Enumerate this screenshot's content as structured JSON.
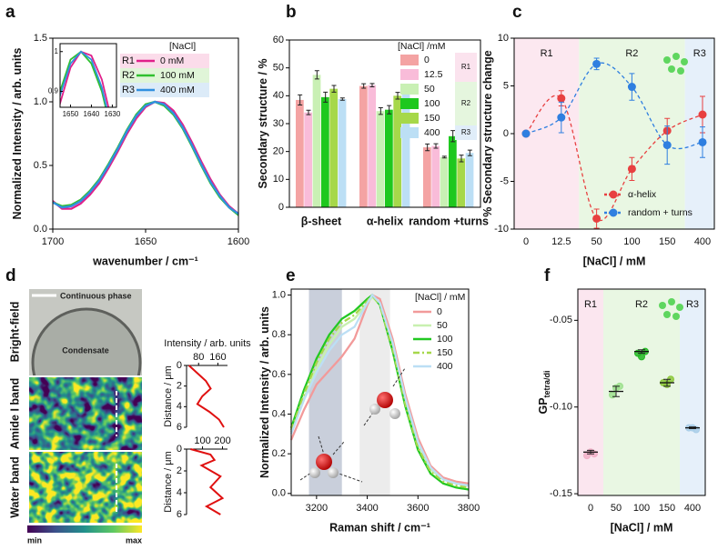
{
  "chart_data": [
    {
      "panel": "a",
      "type": "line",
      "ylabel": "Normalized Intensity / arb. units",
      "xlabel": "wavenumber / cm⁻¹",
      "x": [
        1700,
        1695,
        1690,
        1685,
        1680,
        1675,
        1670,
        1665,
        1660,
        1655,
        1650,
        1645,
        1640,
        1635,
        1630,
        1625,
        1620,
        1615,
        1610,
        1605,
        1600
      ],
      "series": [
        {
          "name": "0 mM",
          "color": "#e0208a",
          "values": [
            0.22,
            0.16,
            0.16,
            0.2,
            0.27,
            0.36,
            0.48,
            0.61,
            0.75,
            0.87,
            0.96,
            1.0,
            0.99,
            0.93,
            0.82,
            0.68,
            0.53,
            0.39,
            0.27,
            0.18,
            0.12
          ]
        },
        {
          "name": "100 mM",
          "color": "#30c030",
          "values": [
            0.21,
            0.18,
            0.19,
            0.23,
            0.3,
            0.39,
            0.51,
            0.64,
            0.78,
            0.9,
            0.98,
            1.0,
            0.97,
            0.9,
            0.79,
            0.65,
            0.5,
            0.36,
            0.25,
            0.17,
            0.11
          ]
        },
        {
          "name": "400 mM",
          "color": "#3090e0",
          "values": [
            0.21,
            0.17,
            0.18,
            0.22,
            0.29,
            0.38,
            0.5,
            0.63,
            0.77,
            0.89,
            0.97,
            1.0,
            0.98,
            0.91,
            0.8,
            0.66,
            0.51,
            0.37,
            0.26,
            0.17,
            0.12
          ]
        }
      ],
      "xlim": [
        1700,
        1600
      ],
      "xticks": [
        1700,
        1650,
        1600
      ],
      "ylim": [
        0,
        1.5
      ],
      "yticks": [
        {
          "value": 0,
          "label": "0.0"
        },
        0.5,
        {
          "value": 1,
          "label": "1.0"
        },
        1.5
      ],
      "legend_title": "[NaCl]",
      "legend_regions": [
        {
          "label": "R1",
          "color": "#fbdcea",
          "span": [
            0,
            0
          ]
        },
        {
          "label": "R2",
          "color": "#e0f5d8",
          "span": [
            1,
            1
          ]
        },
        {
          "label": "R3",
          "color": "#dcebf8",
          "span": [
            2,
            2
          ]
        }
      ],
      "inset": {
        "xlim": [
          1655,
          1628
        ],
        "ylim": [
          0.86,
          1.02
        ],
        "xticks": [
          1650,
          1640,
          1630
        ],
        "yticks": [
          0.9,
          1
        ]
      }
    },
    {
      "panel": "b",
      "type": "bar",
      "ylabel": "Secondary structure / %",
      "categories": [
        "β-sheet",
        "α-helix",
        "random +turns"
      ],
      "series": [
        {
          "name": "0",
          "color": "#f4a3a3",
          "values": [
            38.5,
            43.5,
            21.5
          ],
          "errors": [
            1.8,
            0.8,
            1.2
          ]
        },
        {
          "name": "12.5",
          "color": "#f9bcd9",
          "values": [
            34,
            43.8,
            22
          ],
          "errors": [
            0.8,
            0.6,
            0.8
          ]
        },
        {
          "name": "50",
          "color": "#c9f0b4",
          "values": [
            47.5,
            34.5,
            18
          ],
          "errors": [
            1.5,
            1.2,
            0.3
          ]
        },
        {
          "name": "100",
          "color": "#1ec81e",
          "values": [
            39.5,
            35,
            25.5
          ],
          "errors": [
            1.8,
            1.5,
            2
          ]
        },
        {
          "name": "150",
          "color": "#a6d84a",
          "values": [
            42.5,
            40,
            17.5
          ],
          "errors": [
            1.2,
            1.2,
            1.2
          ]
        },
        {
          "name": "400",
          "color": "#bcdff5",
          "values": [
            38.8,
            42.5,
            19.5
          ],
          "errors": [
            0.4,
            1.3,
            1
          ]
        }
      ],
      "ylim": [
        0,
        60
      ],
      "yticks": [
        0,
        10,
        20,
        30,
        40,
        50,
        60
      ],
      "legend_title": "[NaCl] /mM",
      "legend_regions": [
        {
          "label": "R1",
          "color": "#fbe3ee",
          "span": [
            0,
            1
          ]
        },
        {
          "label": "R2",
          "color": "#e5f6de",
          "span": [
            2,
            4
          ]
        },
        {
          "label": "R3",
          "color": "#e0edf9",
          "span": [
            5,
            5
          ]
        }
      ]
    },
    {
      "panel": "c",
      "type": "scatter",
      "ylabel": "% Secondary structure change",
      "xlabel": "[NaCl] / mM",
      "categories": [
        "0",
        "12.5",
        "50",
        "100",
        "150",
        "400"
      ],
      "series": [
        {
          "name": "α-helix",
          "color": "#e84040",
          "values": [
            0,
            3.7,
            -8.9,
            -3.7,
            0.3,
            2.0
          ],
          "errors": [
            0,
            0.8,
            1,
            1.2,
            1.3,
            1.9
          ]
        },
        {
          "name": "random + turns",
          "color": "#2f7fe0",
          "values": [
            0,
            1.7,
            7.3,
            4.9,
            -1.2,
            -0.9
          ],
          "errors": [
            0,
            1.6,
            0.6,
            1.4,
            2,
            1.6
          ]
        }
      ],
      "ylim": [
        -10,
        10
      ],
      "yticks": [
        -10,
        -5,
        0,
        5,
        10
      ],
      "regions": [
        {
          "label": "R1",
          "color": "#fce8f0",
          "span": [
            0,
            1
          ]
        },
        {
          "label": "R2",
          "color": "#e9f7e3",
          "span": [
            2,
            4
          ]
        },
        {
          "label": "R3",
          "color": "#e6f0fa",
          "span": [
            5,
            5
          ]
        }
      ]
    },
    {
      "panel": "d",
      "type": "image",
      "labels": {
        "continuous": "Continuous phase",
        "condensate": "Condensate"
      },
      "rows": [
        "Bright-field",
        "Amide I band",
        "Water band"
      ],
      "colorbar": [
        "min",
        "max"
      ],
      "profile_xlabel": "Intensity / arb. units",
      "profile_ylabel": "Distance / μm",
      "profiles": [
        {
          "distance": [
            0,
            0.75,
            1.5,
            2.25,
            3,
            3.75,
            4.5,
            5.25,
            6
          ],
          "values": [
            40,
            75,
            110,
            130,
            95,
            75,
            125,
            165,
            185
          ],
          "xlim": [
            30,
            200
          ],
          "xticks": [
            80,
            160
          ],
          "ylim": [
            0,
            6
          ],
          "yticks": [
            0,
            2,
            4,
            6
          ]
        },
        {
          "distance": [
            0,
            0.5,
            1,
            1.5,
            2.5,
            3.5,
            4.5,
            5.25,
            6
          ],
          "values": [
            40,
            140,
            160,
            95,
            190,
            140,
            200,
            120,
            190
          ],
          "xlim": [
            20,
            225
          ],
          "xticks": [
            100,
            200
          ],
          "ylim": [
            0,
            6
          ],
          "yticks": [
            0,
            2,
            4,
            6
          ]
        }
      ]
    },
    {
      "panel": "e",
      "type": "line",
      "ylabel": "Normalized Intensity / arb. units",
      "xlabel": "Raman shift / cm⁻¹",
      "x": [
        3100,
        3150,
        3200,
        3250,
        3300,
        3350,
        3400,
        3420,
        3450,
        3500,
        3550,
        3600,
        3650,
        3700,
        3750,
        3800
      ],
      "series": [
        {
          "name": "0",
          "color": "#f29a9a",
          "values": [
            0.27,
            0.42,
            0.55,
            0.62,
            0.69,
            0.78,
            0.95,
            1.0,
            0.98,
            0.78,
            0.5,
            0.28,
            0.14,
            0.08,
            0.06,
            0.05
          ]
        },
        {
          "name": "50",
          "color": "#c8f0b0",
          "values": [
            0.31,
            0.48,
            0.63,
            0.75,
            0.84,
            0.88,
            0.96,
            0.99,
            0.95,
            0.75,
            0.47,
            0.25,
            0.12,
            0.07,
            0.05,
            0.04
          ]
        },
        {
          "name": "100",
          "color": "#22c822",
          "values": [
            0.33,
            0.52,
            0.68,
            0.8,
            0.88,
            0.92,
            0.98,
            1.0,
            0.95,
            0.72,
            0.44,
            0.22,
            0.1,
            0.05,
            0.03,
            0.02
          ]
        },
        {
          "name": "150",
          "color": "#a6d84a",
          "dash": "7,3,2,3",
          "values": [
            0.32,
            0.5,
            0.66,
            0.78,
            0.86,
            0.9,
            0.97,
            1.0,
            0.95,
            0.73,
            0.45,
            0.23,
            0.11,
            0.06,
            0.04,
            0.03
          ]
        },
        {
          "name": "400",
          "color": "#bcdff5",
          "values": [
            0.3,
            0.47,
            0.61,
            0.72,
            0.8,
            0.84,
            0.96,
            1.0,
            0.96,
            0.76,
            0.48,
            0.26,
            0.13,
            0.07,
            0.05,
            0.04
          ]
        }
      ],
      "xlim": [
        3100,
        3800
      ],
      "xticks": [
        3200,
        3400,
        3600,
        3800
      ],
      "ylim": [
        -0.01,
        1.03
      ],
      "yticks": [
        {
          "value": 0,
          "label": "0.0"
        },
        0.2,
        0.4,
        0.6,
        0.8,
        {
          "value": 1,
          "label": "1.0"
        }
      ],
      "shaded": [
        {
          "from": 3170,
          "to": 3300,
          "color": "#c9cfdb"
        },
        {
          "from": 3370,
          "to": 3490,
          "color": "#ececec"
        }
      ],
      "legend_title": "[NaCl] / mM"
    },
    {
      "panel": "f",
      "type": "scatter",
      "ylabel": "GP",
      "ylabel_sub": "tetra/di",
      "xlabel": "[NaCl] / mM",
      "categories": [
        "0",
        "50",
        "100",
        "150",
        "400"
      ],
      "values": [
        -0.126,
        -0.091,
        -0.068,
        -0.086,
        -0.112
      ],
      "errors": [
        0.001,
        0.003,
        0.001,
        0.002,
        0.0005
      ],
      "points": [
        [
          -0.128,
          -0.126,
          -0.127
        ],
        [
          -0.093,
          -0.089,
          -0.088
        ],
        [
          -0.069,
          -0.071,
          -0.068
        ],
        [
          -0.086,
          -0.087,
          -0.084
        ],
        [
          -0.112,
          -0.112,
          -0.113
        ]
      ],
      "colors": [
        "#f2b0c8",
        "#9ee08e",
        "#22b822",
        "#8cc83a",
        "#a8cde8"
      ],
      "ylim": [
        -0.151,
        -0.032
      ],
      "yticks": [
        -0.15,
        {
          "value": -0.1,
          "label": "-0.10"
        },
        -0.05
      ],
      "regions": [
        {
          "label": "R1",
          "color": "#fbe6ef",
          "span": [
            0,
            0
          ]
        },
        {
          "label": "R2",
          "color": "#e9f7e3",
          "span": [
            1,
            3
          ]
        },
        {
          "label": "R3",
          "color": "#e6f0fa",
          "span": [
            4,
            4
          ]
        }
      ]
    }
  ]
}
